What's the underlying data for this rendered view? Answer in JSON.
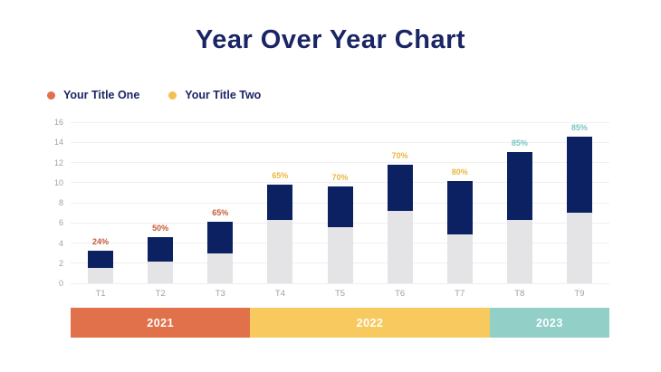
{
  "page": {
    "title": "Year Over Year Chart"
  },
  "legend": {
    "items": [
      {
        "label": "Your Title One",
        "color": "#E0714B"
      },
      {
        "label": "Your Title Two",
        "color": "#F0C052"
      }
    ]
  },
  "chart_data": {
    "type": "bar",
    "stacked": true,
    "title": "Year Over Year Chart",
    "categories": [
      "T1",
      "T2",
      "T3",
      "T4",
      "T5",
      "T6",
      "T7",
      "T8",
      "T9"
    ],
    "series": [
      {
        "name": "base-segment",
        "color": "#E4E4E6",
        "values": [
          1.5,
          2.2,
          3.0,
          6.3,
          5.6,
          7.2,
          4.9,
          6.3,
          7.0
        ]
      },
      {
        "name": "growth-segment",
        "color": "#0B2161",
        "values": [
          1.7,
          2.4,
          3.1,
          3.5,
          4.0,
          4.6,
          5.3,
          6.7,
          7.6
        ]
      }
    ],
    "totals": [
      3.2,
      4.6,
      6.1,
      9.8,
      9.6,
      11.8,
      10.2,
      13.0,
      14.6
    ],
    "bar_labels": [
      {
        "text": "24%",
        "color": "#C75B38"
      },
      {
        "text": "50%",
        "color": "#C75B38"
      },
      {
        "text": "65%",
        "color": "#C75B38"
      },
      {
        "text": "65%",
        "color": "#E9B83E"
      },
      {
        "text": "70%",
        "color": "#E9B83E"
      },
      {
        "text": "70%",
        "color": "#E9B83E"
      },
      {
        "text": "80%",
        "color": "#E9B83E"
      },
      {
        "text": "85%",
        "color": "#7CC5C0"
      },
      {
        "text": "85%",
        "color": "#7CC5C0"
      }
    ],
    "y_axis": {
      "min": 0,
      "max": 16,
      "step": 2,
      "ticks": [
        "0",
        "2",
        "4",
        "6",
        "8",
        "10",
        "12",
        "14",
        "16"
      ]
    },
    "grid": true,
    "legend_position": "top-left"
  },
  "year_bands": [
    {
      "label": "2021",
      "span": 3,
      "color": "#E0714B"
    },
    {
      "label": "2022",
      "span": 4,
      "color": "#F7C95E"
    },
    {
      "label": "2023",
      "span": 2,
      "color": "#92CFC7"
    }
  ]
}
